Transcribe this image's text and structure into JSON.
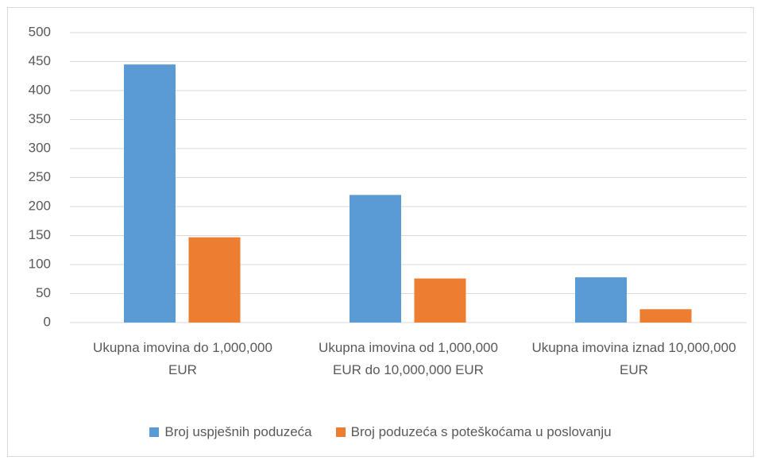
{
  "chart_data": {
    "type": "bar",
    "categories": [
      "Ukupna imovina do 1,000,000 EUR",
      "Ukupna imovina od 1,000,000 EUR do 10,000,000 EUR",
      "Ukupna imovina iznad 10,000,000 EUR"
    ],
    "series": [
      {
        "name": "Broj uspješnih poduzeća",
        "color": "#5b9bd5",
        "values": [
          445,
          220,
          78
        ]
      },
      {
        "name": "Broj poduzeća s poteškoćama u poslovanju",
        "color": "#ed7d31",
        "values": [
          147,
          76,
          23
        ]
      }
    ],
    "ylim": [
      0,
      500
    ],
    "yticks": [
      0,
      50,
      100,
      150,
      200,
      250,
      300,
      350,
      400,
      450,
      500
    ],
    "grid": true,
    "legend": "bottom"
  }
}
